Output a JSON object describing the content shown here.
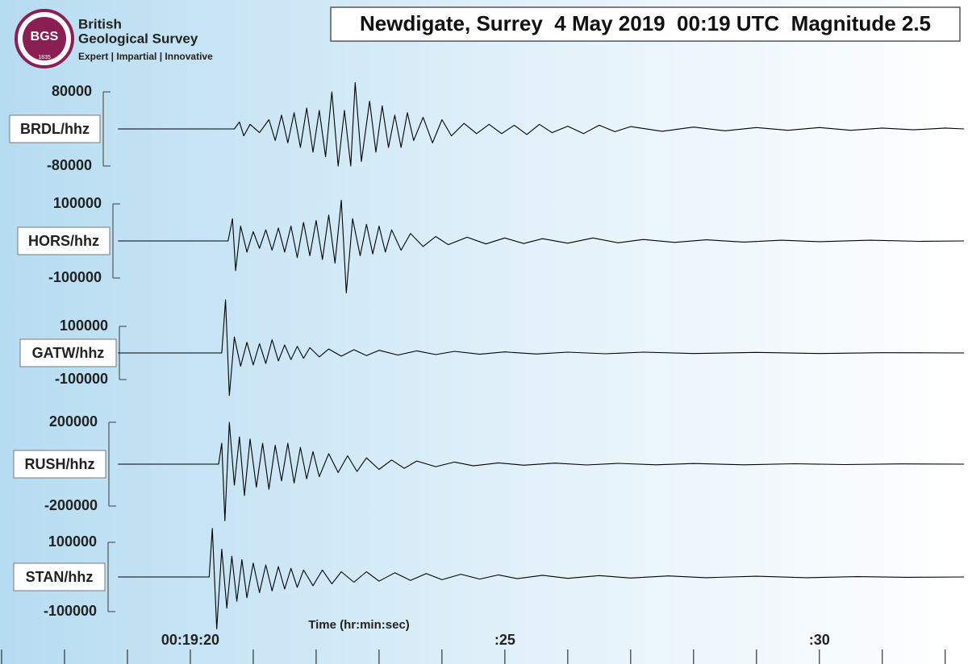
{
  "logo": {
    "badge": "BGS",
    "year": "1835",
    "name_line1": "British",
    "name_line2": "Geological Survey",
    "tagline": "Expert | Impartial | Innovative"
  },
  "title": "Newdigate, Surrey  4 May 2019  00:19 UTC  Magnitude 2.5",
  "x_axis": {
    "label": "Time (hr:min:sec)",
    "xlim": [
      17,
      32.35
    ],
    "xticks": [
      {
        "value": 20,
        "label": "00:19:20"
      },
      {
        "value": 25,
        "label": ":25"
      },
      {
        "value": 30,
        "label": ":30"
      }
    ],
    "minor_ticks": [
      17,
      18,
      19,
      21,
      22,
      23,
      24,
      26,
      27,
      28,
      29,
      31,
      32
    ]
  },
  "chart_data": [
    {
      "type": "line",
      "name": "BRDL/hhz",
      "color": "#000000",
      "ylim": [
        -140000,
        140000
      ],
      "yticks": [
        80000,
        -80000
      ],
      "x": [
        18.85,
        20.7,
        20.78,
        20.85,
        20.95,
        21.1,
        21.25,
        21.35,
        21.45,
        21.55,
        21.65,
        21.75,
        21.85,
        21.95,
        22.05,
        22.15,
        22.25,
        22.35,
        22.45,
        22.55,
        22.62,
        22.72,
        22.85,
        22.95,
        23.05,
        23.15,
        23.25,
        23.35,
        23.45,
        23.55,
        23.7,
        23.85,
        24.0,
        24.15,
        24.35,
        24.55,
        24.75,
        24.95,
        25.15,
        25.35,
        25.55,
        25.75,
        26.0,
        26.25,
        26.5,
        26.75,
        27.0,
        27.5,
        28.0,
        28.5,
        29.0,
        29.5,
        30.0,
        30.5,
        31.0,
        31.5,
        32.0,
        32.3
      ],
      "values": [
        0,
        0,
        15000,
        -15000,
        10000,
        -8000,
        20000,
        -25000,
        30000,
        -30000,
        35000,
        -40000,
        45000,
        -50000,
        40000,
        -60000,
        80000,
        -80000,
        40000,
        -80000,
        100000,
        -70000,
        60000,
        -50000,
        50000,
        -40000,
        30000,
        -40000,
        35000,
        -25000,
        25000,
        -30000,
        20000,
        -15000,
        12000,
        -10000,
        10000,
        -10000,
        8000,
        -12000,
        10000,
        -8000,
        6000,
        -10000,
        8000,
        -6000,
        5000,
        -5000,
        4000,
        -4000,
        3000,
        -3000,
        3000,
        -3000,
        2000,
        -2000,
        2000,
        0
      ]
    },
    {
      "type": "line",
      "name": "HORS/hhz",
      "color": "#000000",
      "ylim": [
        -150000,
        150000
      ],
      "yticks": [
        100000,
        -100000
      ],
      "x": [
        18.85,
        20.6,
        20.67,
        20.72,
        20.8,
        20.9,
        21.0,
        21.1,
        21.2,
        21.3,
        21.4,
        21.5,
        21.6,
        21.7,
        21.8,
        21.9,
        22.0,
        22.1,
        22.2,
        22.3,
        22.4,
        22.48,
        22.58,
        22.7,
        22.8,
        22.9,
        23.0,
        23.1,
        23.2,
        23.35,
        23.5,
        23.7,
        23.9,
        24.1,
        24.4,
        24.7,
        25.0,
        25.3,
        25.6,
        26.0,
        26.4,
        26.8,
        27.2,
        27.7,
        28.2,
        28.8,
        29.4,
        30.0,
        30.8,
        31.6,
        32.3
      ],
      "values": [
        0,
        0,
        60000,
        -80000,
        40000,
        -30000,
        25000,
        -20000,
        30000,
        -25000,
        35000,
        -30000,
        40000,
        -45000,
        50000,
        -40000,
        55000,
        -50000,
        70000,
        -60000,
        110000,
        -140000,
        60000,
        -40000,
        45000,
        -35000,
        40000,
        -30000,
        30000,
        -25000,
        20000,
        -15000,
        12000,
        -10000,
        10000,
        -8000,
        8000,
        -7000,
        6000,
        -6000,
        8000,
        -5000,
        4000,
        -4000,
        3000,
        -3000,
        2000,
        -2000,
        2000,
        -1000,
        0
      ]
    },
    {
      "type": "line",
      "name": "GATW/hhz",
      "color": "#000000",
      "ylim": [
        -200000,
        200000
      ],
      "yticks": [
        100000,
        -100000
      ],
      "x": [
        18.85,
        20.5,
        20.56,
        20.62,
        20.7,
        20.8,
        20.9,
        21.0,
        21.1,
        21.2,
        21.3,
        21.4,
        21.5,
        21.6,
        21.7,
        21.8,
        21.9,
        22.05,
        22.2,
        22.4,
        22.6,
        22.8,
        23.0,
        23.3,
        23.6,
        23.9,
        24.2,
        24.6,
        25.0,
        25.5,
        26.0,
        26.6,
        27.2,
        28.0,
        29.0,
        30.0,
        31.0,
        32.3
      ],
      "values": [
        0,
        0,
        200000,
        -160000,
        60000,
        -50000,
        40000,
        -45000,
        35000,
        -40000,
        50000,
        -30000,
        30000,
        -25000,
        25000,
        -20000,
        20000,
        -15000,
        15000,
        -12000,
        12000,
        -10000,
        10000,
        -8000,
        8000,
        -6000,
        6000,
        -5000,
        4000,
        -4000,
        3000,
        -3000,
        3000,
        -2000,
        2000,
        -2000,
        1000,
        0
      ]
    },
    {
      "type": "line",
      "name": "RUSH/hhz",
      "color": "#000000",
      "ylim": [
        -250000,
        250000
      ],
      "yticks": [
        200000,
        -200000
      ],
      "x": [
        18.85,
        20.45,
        20.5,
        20.55,
        20.62,
        20.7,
        20.78,
        20.86,
        20.95,
        21.05,
        21.15,
        21.25,
        21.35,
        21.45,
        21.55,
        21.65,
        21.75,
        21.85,
        21.95,
        22.05,
        22.2,
        22.35,
        22.5,
        22.65,
        22.8,
        23.0,
        23.2,
        23.4,
        23.6,
        23.9,
        24.2,
        24.5,
        24.9,
        25.3,
        25.8,
        26.3,
        26.8,
        27.4,
        28.0,
        28.8,
        29.6,
        30.4,
        31.3,
        32.3
      ],
      "values": [
        0,
        0,
        100000,
        -270000,
        200000,
        -100000,
        130000,
        -150000,
        120000,
        -110000,
        100000,
        -120000,
        90000,
        -80000,
        100000,
        -90000,
        80000,
        -70000,
        60000,
        -60000,
        50000,
        -40000,
        40000,
        -35000,
        30000,
        -25000,
        20000,
        -20000,
        15000,
        -12000,
        10000,
        -8000,
        6000,
        -5000,
        5000,
        -4000,
        4000,
        -3000,
        3000,
        -3000,
        2000,
        -2000,
        1000,
        0
      ]
    },
    {
      "type": "line",
      "name": "STAN/hhz",
      "color": "#000000",
      "ylim": [
        -150000,
        150000
      ],
      "yticks": [
        100000,
        -100000
      ],
      "x": [
        18.85,
        20.3,
        20.35,
        20.42,
        20.5,
        20.58,
        20.66,
        20.74,
        20.82,
        20.9,
        21.0,
        21.1,
        21.2,
        21.3,
        21.4,
        21.5,
        21.6,
        21.7,
        21.8,
        21.95,
        22.1,
        22.25,
        22.4,
        22.6,
        22.8,
        23.0,
        23.25,
        23.5,
        23.75,
        24.0,
        24.3,
        24.6,
        24.9,
        25.2,
        25.6,
        26.0,
        26.5,
        27.0,
        27.6,
        28.2,
        29.0,
        29.8,
        30.6,
        31.4,
        32.3
      ],
      "values": [
        0,
        0,
        140000,
        -150000,
        80000,
        -90000,
        60000,
        -70000,
        50000,
        -60000,
        40000,
        -45000,
        35000,
        -40000,
        30000,
        -35000,
        25000,
        -30000,
        20000,
        -25000,
        20000,
        -20000,
        15000,
        -15000,
        15000,
        -12000,
        12000,
        -10000,
        10000,
        -8000,
        8000,
        -6000,
        6000,
        -5000,
        5000,
        -4000,
        4000,
        -3000,
        3000,
        -2000,
        2000,
        -2000,
        1000,
        -1000,
        0
      ]
    }
  ]
}
